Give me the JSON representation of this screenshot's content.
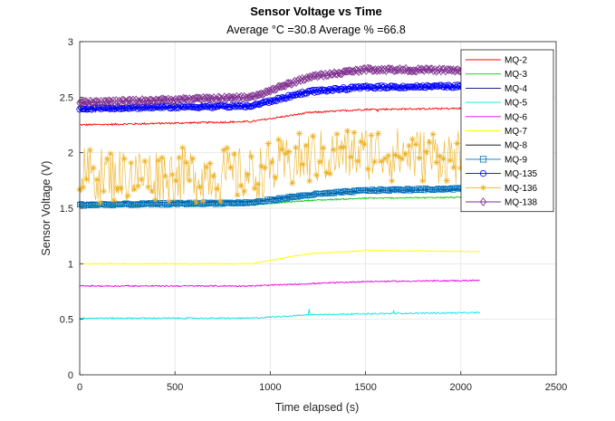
{
  "chart_data": {
    "type": "line",
    "title": "Sensor Voltage vs Time",
    "subtitle": "Average °C =30.8     Average % =66.8",
    "xlabel": "Time elapsed (s)",
    "ylabel": "Sensor Voltage (V)",
    "xlim": [
      0,
      2500
    ],
    "ylim": [
      0,
      3
    ],
    "xticks": [
      0,
      500,
      1000,
      1500,
      2000,
      2500
    ],
    "yticks": [
      0,
      0.5,
      1,
      1.5,
      2,
      2.5,
      3
    ],
    "grid": true,
    "legend_position": "top-right",
    "series": [
      {
        "name": "MQ-2",
        "color": "#ff0000",
        "marker": "none",
        "noise": 0.008,
        "x": [
          0,
          900,
          1200,
          1500,
          2100
        ],
        "y": [
          2.25,
          2.28,
          2.36,
          2.39,
          2.4
        ]
      },
      {
        "name": "MQ-3",
        "color": "#00cc00",
        "marker": "none",
        "noise": 0.006,
        "x": [
          0,
          900,
          1200,
          1500,
          2100
        ],
        "y": [
          1.52,
          1.53,
          1.57,
          1.59,
          1.6
        ]
      },
      {
        "name": "MQ-4",
        "color": "#000080",
        "marker": "none",
        "noise": 0.008,
        "x": [
          0,
          900,
          1200,
          1500,
          2100
        ],
        "y": [
          2.39,
          2.42,
          2.55,
          2.58,
          2.59
        ]
      },
      {
        "name": "MQ-5",
        "color": "#00e5e5",
        "marker": "none",
        "noise": 0.006,
        "x": [
          0,
          900,
          1200,
          1500,
          2100
        ],
        "y": [
          0.51,
          0.51,
          0.54,
          0.55,
          0.56
        ]
      },
      {
        "name": "MQ-6",
        "color": "#e600e6",
        "marker": "none",
        "noise": 0.006,
        "x": [
          0,
          900,
          1200,
          1500,
          2100
        ],
        "y": [
          0.8,
          0.8,
          0.82,
          0.84,
          0.85
        ]
      },
      {
        "name": "MQ-7",
        "color": "#ffff00",
        "marker": "none",
        "noise": 0.005,
        "x": [
          0,
          900,
          1200,
          1500,
          2100
        ],
        "y": [
          1.0,
          1.0,
          1.09,
          1.12,
          1.11
        ]
      },
      {
        "name": "MQ-8",
        "color": "#000000",
        "marker": "none",
        "noise": 0.006,
        "x": [
          0,
          900,
          1200,
          1500,
          2100
        ],
        "y": [
          1.55,
          1.56,
          1.62,
          1.66,
          1.67
        ]
      },
      {
        "name": "MQ-9",
        "color": "#0072bd",
        "marker": "square",
        "noise": 0.01,
        "x": [
          0,
          900,
          1200,
          1500,
          2100
        ],
        "y": [
          1.53,
          1.55,
          1.62,
          1.66,
          1.68
        ]
      },
      {
        "name": "MQ-135",
        "color": "#0000ff",
        "marker": "circle",
        "noise": 0.012,
        "x": [
          0,
          900,
          1200,
          1500,
          2100
        ],
        "y": [
          2.4,
          2.42,
          2.55,
          2.59,
          2.6
        ]
      },
      {
        "name": "MQ-136",
        "color": "#edb120",
        "marker": "star",
        "noise": 0.25,
        "x": [
          0,
          900,
          1200,
          1500,
          2100
        ],
        "y": [
          1.8,
          1.8,
          1.95,
          2.0,
          1.95
        ]
      },
      {
        "name": "MQ-138",
        "color": "#7e2f8e",
        "marker": "diamond",
        "noise": 0.012,
        "x": [
          0,
          900,
          1200,
          1500,
          2100
        ],
        "y": [
          2.45,
          2.5,
          2.68,
          2.75,
          2.74
        ]
      }
    ]
  }
}
